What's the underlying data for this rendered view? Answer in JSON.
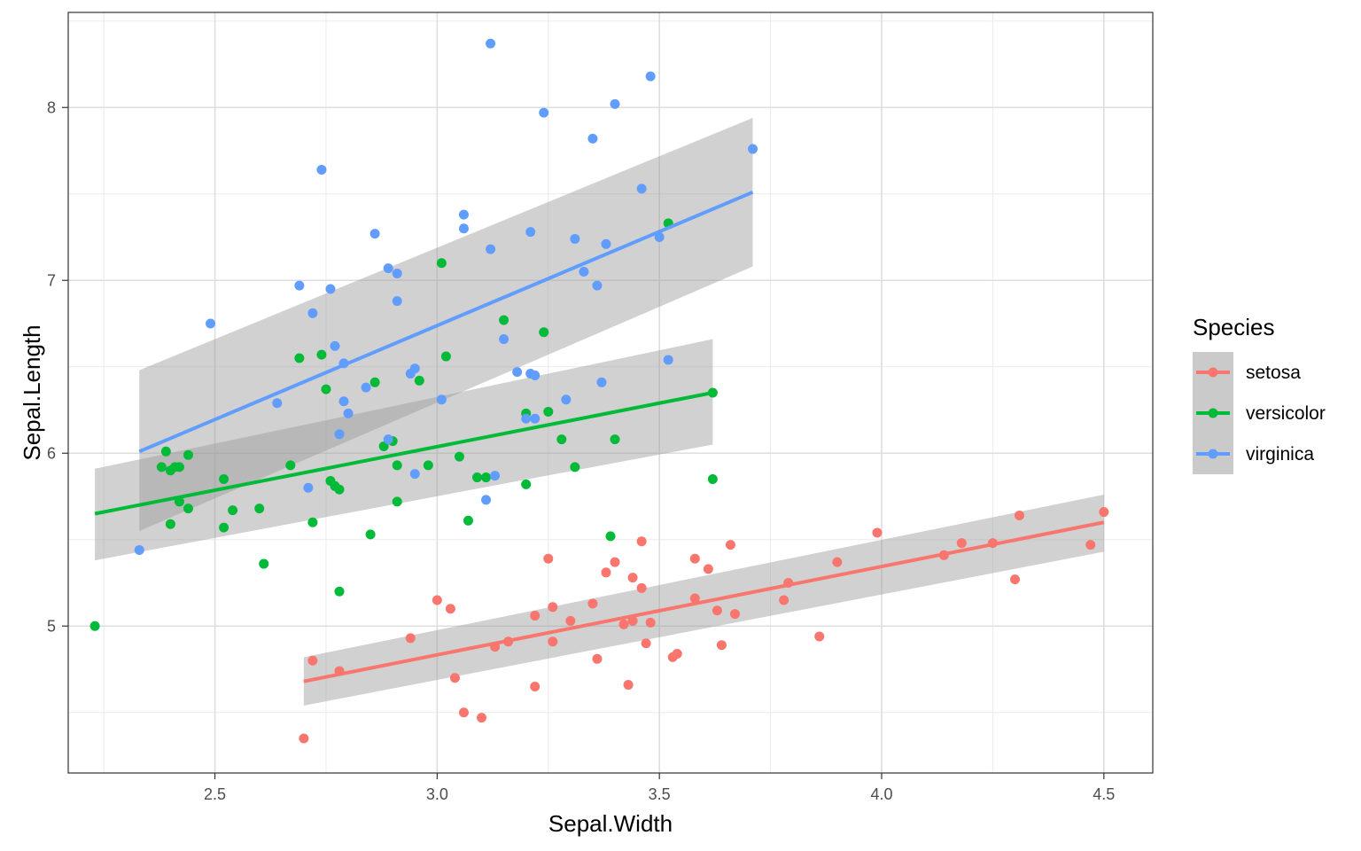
{
  "chart_data": {
    "type": "scatter",
    "xlabel": "Sepal.Width",
    "ylabel": "Sepal.Length",
    "xlim": [
      2.17,
      4.61
    ],
    "ylim": [
      4.15,
      8.55
    ],
    "x_ticks": [
      2.5,
      3.0,
      3.5,
      4.0,
      4.5
    ],
    "x_tick_labels": [
      "2.5",
      "3.0",
      "3.5",
      "4.0",
      "4.5"
    ],
    "y_ticks": [
      5,
      6,
      7,
      8
    ],
    "y_tick_labels": [
      "5",
      "6",
      "7",
      "8"
    ],
    "grid": true,
    "legend": {
      "title": "Species",
      "placement": "right"
    },
    "series": [
      {
        "name": "setosa",
        "color": "#F8766D",
        "points": [
          [
            2.7,
            4.35
          ],
          [
            2.72,
            4.8
          ],
          [
            2.78,
            4.74
          ],
          [
            2.94,
            4.93
          ],
          [
            3.0,
            5.15
          ],
          [
            3.03,
            5.1
          ],
          [
            3.04,
            4.7
          ],
          [
            3.06,
            4.5
          ],
          [
            3.1,
            4.47
          ],
          [
            3.13,
            4.88
          ],
          [
            3.16,
            4.91
          ],
          [
            3.22,
            5.06
          ],
          [
            3.22,
            4.65
          ],
          [
            3.25,
            5.39
          ],
          [
            3.26,
            5.11
          ],
          [
            3.26,
            4.91
          ],
          [
            3.3,
            5.03
          ],
          [
            3.35,
            5.13
          ],
          [
            3.36,
            4.81
          ],
          [
            3.38,
            5.31
          ],
          [
            3.4,
            5.37
          ],
          [
            3.42,
            5.01
          ],
          [
            3.43,
            4.66
          ],
          [
            3.44,
            5.28
          ],
          [
            3.44,
            5.03
          ],
          [
            3.46,
            5.22
          ],
          [
            3.46,
            5.49
          ],
          [
            3.47,
            4.9
          ],
          [
            3.48,
            5.02
          ],
          [
            3.53,
            4.82
          ],
          [
            3.54,
            4.84
          ],
          [
            3.58,
            5.16
          ],
          [
            3.58,
            5.39
          ],
          [
            3.61,
            5.33
          ],
          [
            3.63,
            5.09
          ],
          [
            3.64,
            4.89
          ],
          [
            3.66,
            5.47
          ],
          [
            3.67,
            5.07
          ],
          [
            3.78,
            5.15
          ],
          [
            3.79,
            5.25
          ],
          [
            3.86,
            4.94
          ],
          [
            3.9,
            5.37
          ],
          [
            3.99,
            5.54
          ],
          [
            4.14,
            5.41
          ],
          [
            4.18,
            5.48
          ],
          [
            4.25,
            5.48
          ],
          [
            4.3,
            5.27
          ],
          [
            4.31,
            5.64
          ],
          [
            4.47,
            5.47
          ],
          [
            4.5,
            5.66
          ]
        ],
        "fit": {
          "x": [
            2.7,
            4.5
          ],
          "y": [
            4.68,
            5.6
          ],
          "ci_low": [
            4.54,
            5.43
          ],
          "ci_high": [
            4.82,
            5.76
          ]
        }
      },
      {
        "name": "versicolor",
        "color": "#00BA38",
        "points": [
          [
            2.23,
            5.0
          ],
          [
            2.38,
            5.92
          ],
          [
            2.39,
            6.01
          ],
          [
            2.4,
            5.59
          ],
          [
            2.4,
            5.9
          ],
          [
            2.41,
            5.92
          ],
          [
            2.42,
            5.72
          ],
          [
            2.42,
            5.92
          ],
          [
            2.44,
            5.99
          ],
          [
            2.44,
            5.68
          ],
          [
            2.52,
            5.57
          ],
          [
            2.52,
            5.85
          ],
          [
            2.54,
            5.67
          ],
          [
            2.6,
            5.68
          ],
          [
            2.61,
            5.36
          ],
          [
            2.67,
            5.93
          ],
          [
            2.69,
            6.55
          ],
          [
            2.72,
            5.6
          ],
          [
            2.74,
            6.57
          ],
          [
            2.75,
            6.37
          ],
          [
            2.76,
            5.84
          ],
          [
            2.77,
            5.81
          ],
          [
            2.78,
            5.79
          ],
          [
            2.78,
            5.2
          ],
          [
            2.85,
            5.53
          ],
          [
            2.86,
            6.41
          ],
          [
            2.88,
            6.04
          ],
          [
            2.9,
            6.07
          ],
          [
            2.91,
            5.93
          ],
          [
            2.91,
            5.72
          ],
          [
            2.96,
            6.42
          ],
          [
            2.98,
            5.93
          ],
          [
            3.01,
            7.1
          ],
          [
            3.02,
            6.56
          ],
          [
            3.05,
            5.98
          ],
          [
            3.07,
            5.61
          ],
          [
            3.09,
            5.86
          ],
          [
            3.11,
            5.86
          ],
          [
            3.2,
            5.82
          ],
          [
            3.2,
            6.23
          ],
          [
            3.24,
            6.7
          ],
          [
            3.25,
            6.24
          ],
          [
            3.28,
            6.08
          ],
          [
            3.31,
            5.92
          ],
          [
            3.39,
            5.52
          ],
          [
            3.4,
            6.08
          ],
          [
            3.52,
            7.33
          ],
          [
            3.62,
            5.85
          ],
          [
            3.62,
            6.35
          ],
          [
            3.15,
            6.77
          ]
        ],
        "fit": {
          "x": [
            2.23,
            3.62
          ],
          "y": [
            5.65,
            6.35
          ],
          "ci_low": [
            5.38,
            6.05
          ],
          "ci_high": [
            5.91,
            6.66
          ]
        }
      },
      {
        "name": "virginica",
        "color": "#619CFF",
        "points": [
          [
            2.33,
            5.44
          ],
          [
            2.49,
            6.75
          ],
          [
            2.64,
            6.29
          ],
          [
            2.69,
            6.97
          ],
          [
            2.71,
            5.8
          ],
          [
            2.72,
            6.81
          ],
          [
            2.74,
            7.64
          ],
          [
            2.76,
            6.95
          ],
          [
            2.77,
            6.62
          ],
          [
            2.79,
            6.52
          ],
          [
            2.78,
            6.11
          ],
          [
            2.79,
            6.3
          ],
          [
            2.8,
            6.23
          ],
          [
            2.84,
            6.38
          ],
          [
            2.86,
            7.27
          ],
          [
            2.89,
            7.07
          ],
          [
            2.89,
            6.08
          ],
          [
            2.91,
            6.88
          ],
          [
            2.91,
            7.04
          ],
          [
            2.94,
            6.46
          ],
          [
            2.95,
            6.49
          ],
          [
            2.95,
            5.88
          ],
          [
            3.01,
            6.31
          ],
          [
            3.06,
            7.38
          ],
          [
            3.06,
            7.3
          ],
          [
            3.12,
            7.18
          ],
          [
            3.12,
            8.37
          ],
          [
            3.13,
            5.87
          ],
          [
            3.11,
            5.73
          ],
          [
            3.15,
            6.66
          ],
          [
            3.18,
            6.47
          ],
          [
            3.21,
            6.46
          ],
          [
            3.21,
            7.28
          ],
          [
            3.22,
            6.45
          ],
          [
            3.22,
            6.2
          ],
          [
            3.24,
            7.97
          ],
          [
            3.29,
            6.31
          ],
          [
            3.31,
            7.24
          ],
          [
            3.33,
            7.05
          ],
          [
            3.35,
            7.82
          ],
          [
            3.36,
            6.97
          ],
          [
            3.37,
            6.41
          ],
          [
            3.38,
            7.21
          ],
          [
            3.4,
            8.02
          ],
          [
            3.46,
            7.53
          ],
          [
            3.48,
            8.18
          ],
          [
            3.5,
            7.25
          ],
          [
            3.52,
            6.54
          ],
          [
            3.71,
            7.76
          ],
          [
            3.2,
            6.2
          ]
        ],
        "fit": {
          "x": [
            2.33,
            3.71
          ],
          "y": [
            6.01,
            7.51
          ],
          "ci_low": [
            5.55,
            7.08
          ],
          "ci_high": [
            6.48,
            7.94
          ]
        }
      }
    ]
  }
}
